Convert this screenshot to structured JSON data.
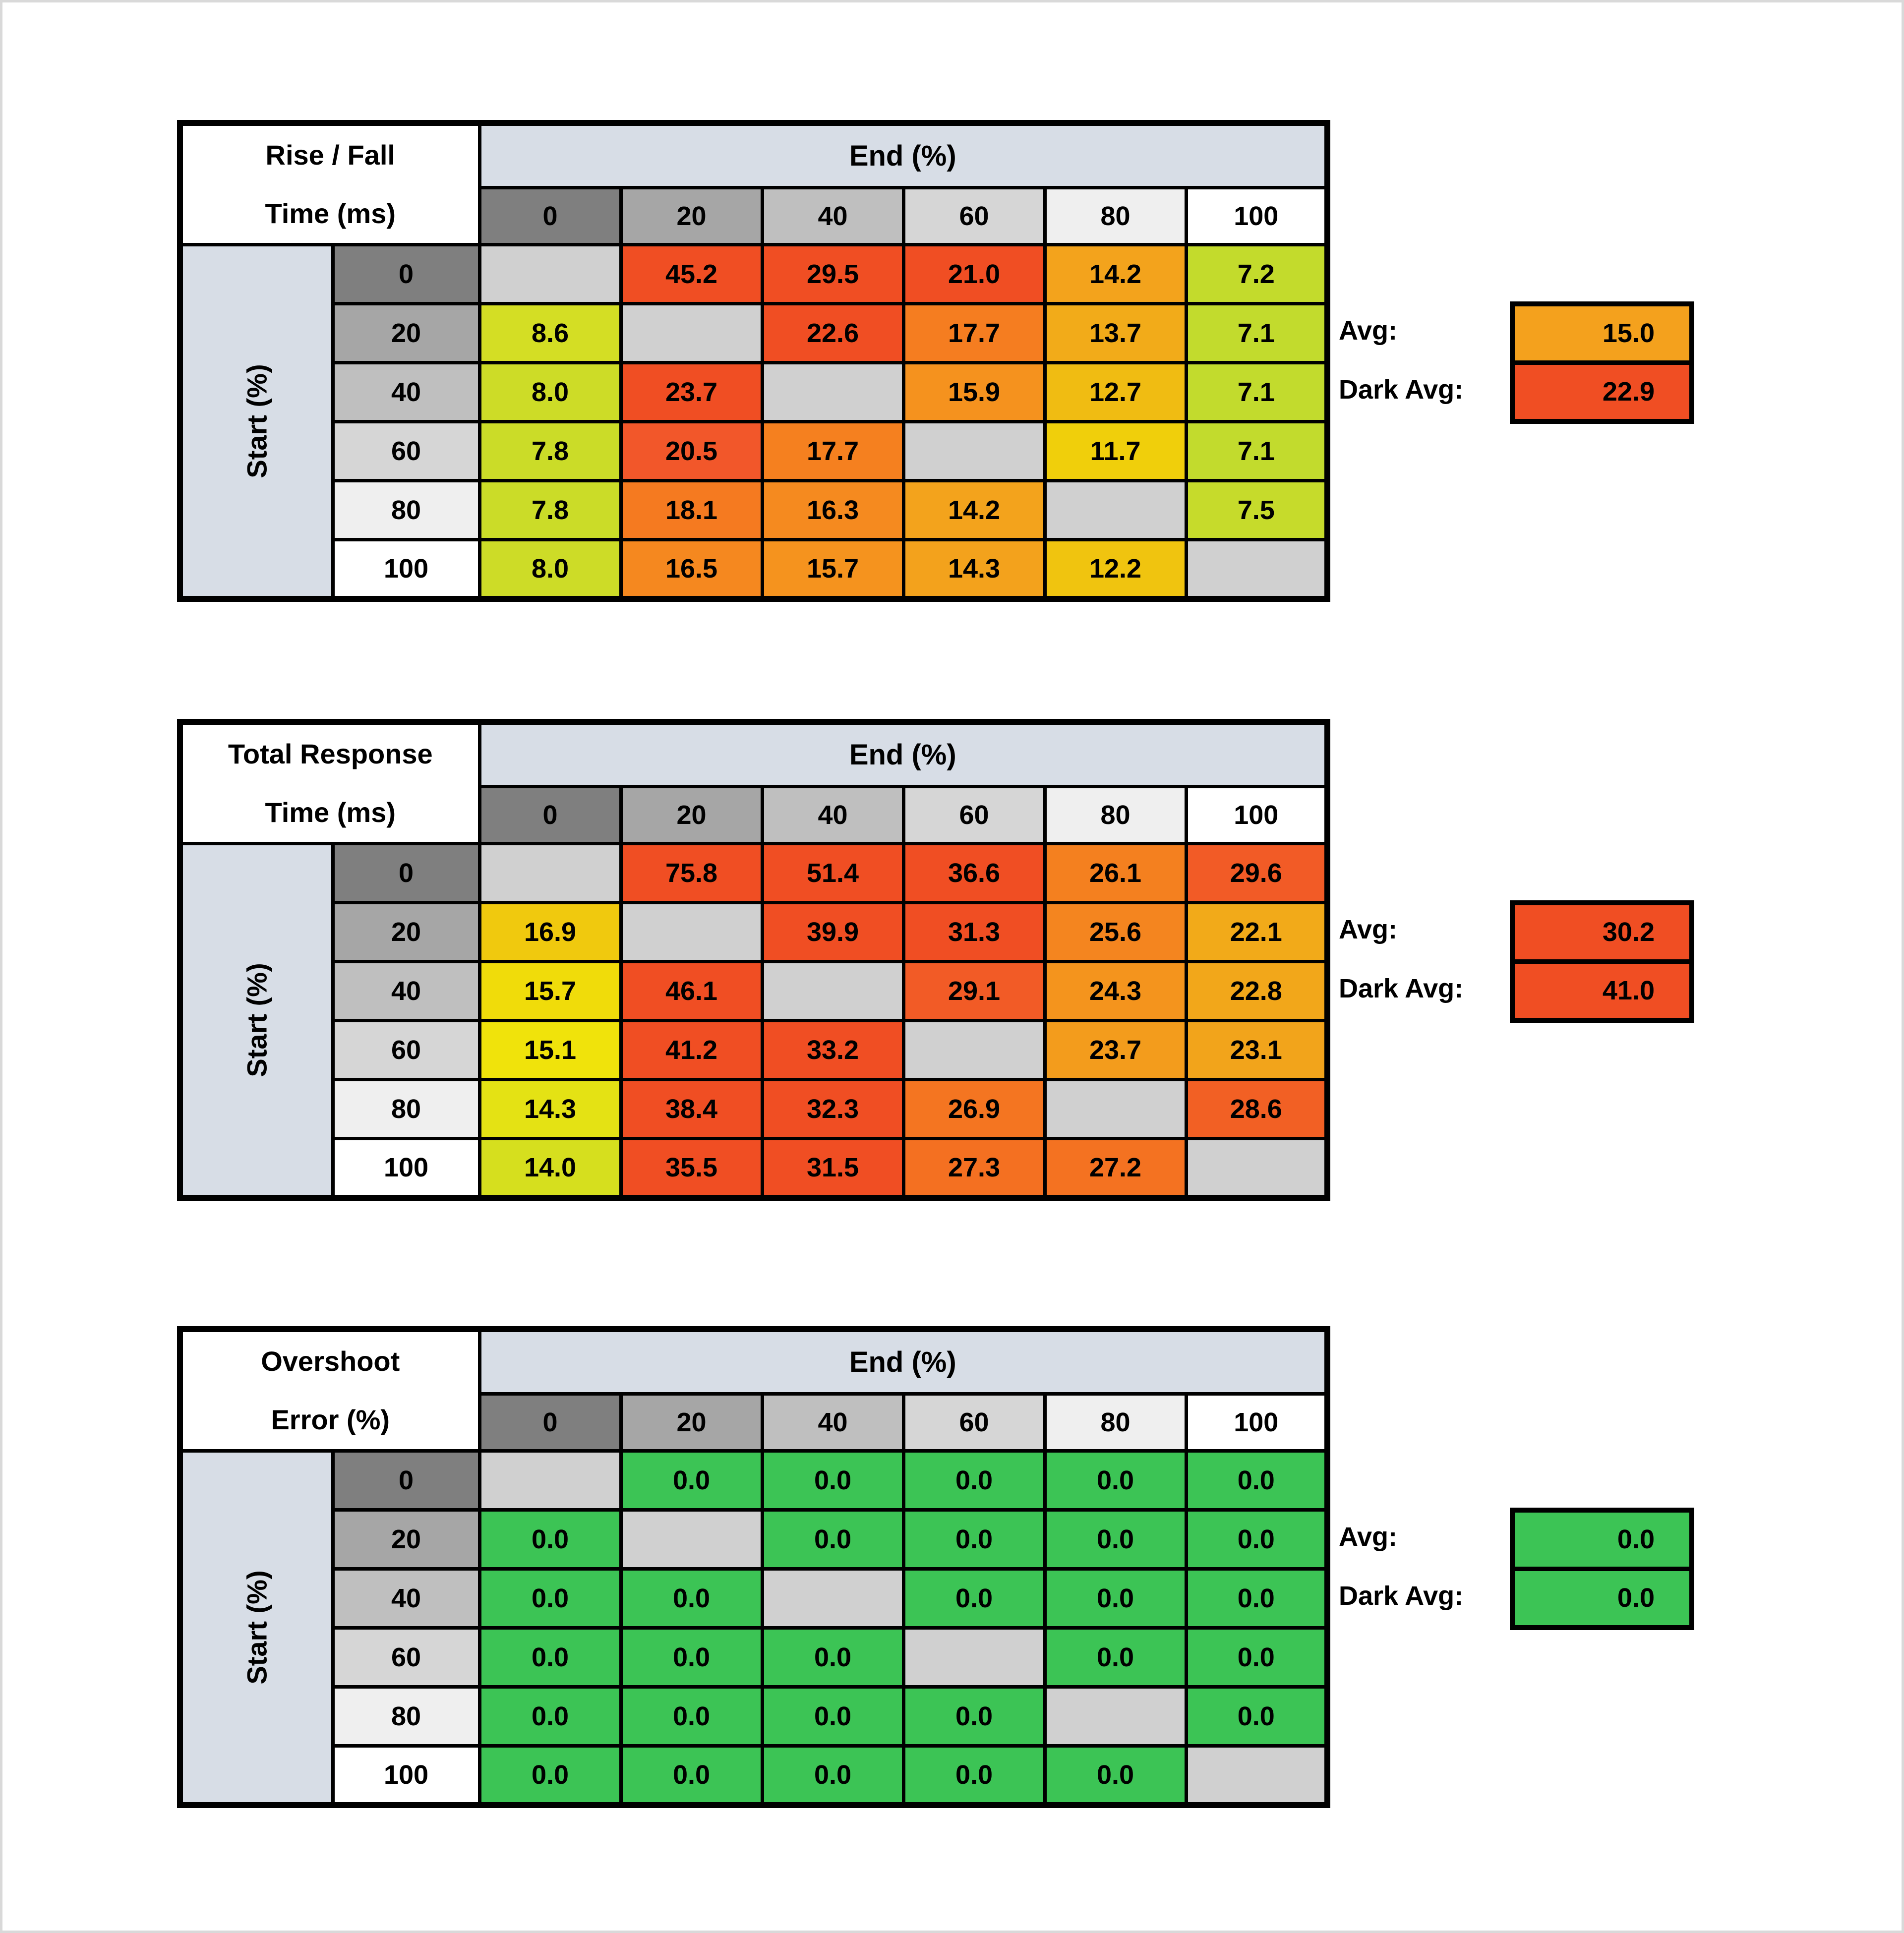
{
  "shared": {
    "x_axis_label": "End (%)",
    "y_axis_label": "Start (%)",
    "x_categories": [
      "0",
      "20",
      "40",
      "60",
      "80",
      "100"
    ],
    "y_categories": [
      "0",
      "20",
      "40",
      "60",
      "80",
      "100"
    ],
    "axis_header_shades": [
      "#7f7f7f",
      "#a6a6a6",
      "#bfbfbf",
      "#d6d6d6",
      "#efefef",
      "#ffffff"
    ],
    "colors": {
      "axis_band_blue": "#d7dde6",
      "diagonal_gray": "#d0d0d0",
      "red": "#f04e23",
      "green": "#3cc455",
      "grid_black": "#000000",
      "page_frame_gray": "#d9d9d9"
    },
    "avg_label": "Avg:",
    "dark_avg_label": "Dark Avg:"
  },
  "chart_data": [
    {
      "type": "heatmap",
      "title_line1": "Rise / Fall",
      "title_line2": "Time (ms)",
      "x_axis_label": "End (%)",
      "y_axis_label": "Start (%)",
      "x_categories": [
        "0",
        "20",
        "40",
        "60",
        "80",
        "100"
      ],
      "y_categories": [
        "0",
        "20",
        "40",
        "60",
        "80",
        "100"
      ],
      "values": [
        [
          null,
          45.2,
          29.5,
          21.0,
          14.2,
          7.2
        ],
        [
          8.6,
          null,
          22.6,
          17.7,
          13.7,
          7.1
        ],
        [
          8.0,
          23.7,
          null,
          15.9,
          12.7,
          7.1
        ],
        [
          7.8,
          20.5,
          17.7,
          null,
          11.7,
          7.1
        ],
        [
          7.8,
          18.1,
          16.3,
          14.2,
          null,
          7.5
        ],
        [
          8.0,
          16.5,
          15.7,
          14.3,
          12.2,
          null
        ]
      ],
      "cell_colors": [
        [
          null,
          "#f04e23",
          "#f04e23",
          "#f04e23",
          "#f3a31c",
          "#c3db2c"
        ],
        [
          "#d4de24",
          null,
          "#f04e23",
          "#f57d20",
          "#f2ab19",
          "#c2db2d"
        ],
        [
          "#cddc27",
          "#f04e23",
          null,
          "#f5921e",
          "#f0bc12",
          "#c2db2d"
        ],
        [
          "#cbdc28",
          "#f2572a",
          "#f5801f",
          null,
          "#f0cf0b",
          "#c2db2d"
        ],
        [
          "#cbdc28",
          "#f57a20",
          "#f58a1f",
          "#f3a31c",
          null,
          "#c6db2b"
        ],
        [
          "#cddc27",
          "#f5881f",
          "#f5931e",
          "#f3a21c",
          "#f0c40f",
          null
        ]
      ],
      "summary": {
        "avg_label": "Avg:",
        "avg_value": "15.0",
        "avg_color": "#f4a11d",
        "dark_avg_label": "Dark Avg:",
        "dark_avg_value": "22.9",
        "dark_avg_color": "#f04e23"
      }
    },
    {
      "type": "heatmap",
      "title_line1": "Total Response",
      "title_line2": "Time (ms)",
      "x_axis_label": "End (%)",
      "y_axis_label": "Start (%)",
      "x_categories": [
        "0",
        "20",
        "40",
        "60",
        "80",
        "100"
      ],
      "y_categories": [
        "0",
        "20",
        "40",
        "60",
        "80",
        "100"
      ],
      "values": [
        [
          null,
          75.8,
          51.4,
          36.6,
          26.1,
          29.6
        ],
        [
          16.9,
          null,
          39.9,
          31.3,
          25.6,
          22.1
        ],
        [
          15.7,
          46.1,
          null,
          29.1,
          24.3,
          22.8
        ],
        [
          15.1,
          41.2,
          33.2,
          null,
          23.7,
          23.1
        ],
        [
          14.3,
          38.4,
          32.3,
          26.9,
          null,
          28.6
        ],
        [
          14.0,
          35.5,
          31.5,
          27.3,
          27.2,
          null
        ]
      ],
      "cell_colors": [
        [
          null,
          "#f04e23",
          "#f04e23",
          "#f04e23",
          "#f4801f",
          "#f25b26"
        ],
        [
          "#f0c90e",
          null,
          "#f04e23",
          "#f04e23",
          "#f4851f",
          "#f2aa19"
        ],
        [
          "#f0dc0a",
          "#f04e23",
          null,
          "#f25b26",
          "#f4941d",
          "#f2a71a"
        ],
        [
          "#f0e30b",
          "#f04e23",
          "#f04e23",
          null,
          "#f39c1c",
          "#f2a41b"
        ],
        [
          "#e4e214",
          "#f04e23",
          "#f04e23",
          "#f47521",
          null,
          "#f26024"
        ],
        [
          "#d6df1e",
          "#f04e23",
          "#f04e23",
          "#f47021",
          "#f47221",
          null
        ]
      ],
      "summary": {
        "avg_label": "Avg:",
        "avg_value": "30.2",
        "avg_color": "#f04e23",
        "dark_avg_label": "Dark Avg:",
        "dark_avg_value": "41.0",
        "dark_avg_color": "#f04e23"
      }
    },
    {
      "type": "heatmap",
      "title_line1": "Overshoot",
      "title_line2": "Error (%)",
      "x_axis_label": "End (%)",
      "y_axis_label": "Start (%)",
      "x_categories": [
        "0",
        "20",
        "40",
        "60",
        "80",
        "100"
      ],
      "y_categories": [
        "0",
        "20",
        "40",
        "60",
        "80",
        "100"
      ],
      "values": [
        [
          null,
          0.0,
          0.0,
          0.0,
          0.0,
          0.0
        ],
        [
          0.0,
          null,
          0.0,
          0.0,
          0.0,
          0.0
        ],
        [
          0.0,
          0.0,
          null,
          0.0,
          0.0,
          0.0
        ],
        [
          0.0,
          0.0,
          0.0,
          null,
          0.0,
          0.0
        ],
        [
          0.0,
          0.0,
          0.0,
          0.0,
          null,
          0.0
        ],
        [
          0.0,
          0.0,
          0.0,
          0.0,
          0.0,
          null
        ]
      ],
      "cell_colors": [
        [
          null,
          "#3cc455",
          "#3cc455",
          "#3cc455",
          "#3cc455",
          "#3cc455"
        ],
        [
          "#3cc455",
          null,
          "#3cc455",
          "#3cc455",
          "#3cc455",
          "#3cc455"
        ],
        [
          "#3cc455",
          "#3cc455",
          null,
          "#3cc455",
          "#3cc455",
          "#3cc455"
        ],
        [
          "#3cc455",
          "#3cc455",
          "#3cc455",
          null,
          "#3cc455",
          "#3cc455"
        ],
        [
          "#3cc455",
          "#3cc455",
          "#3cc455",
          "#3cc455",
          null,
          "#3cc455"
        ],
        [
          "#3cc455",
          "#3cc455",
          "#3cc455",
          "#3cc455",
          "#3cc455",
          null
        ]
      ],
      "summary": {
        "avg_label": "Avg:",
        "avg_value": "0.0",
        "avg_color": "#3cc455",
        "dark_avg_label": "Dark Avg:",
        "dark_avg_value": "0.0",
        "dark_avg_color": "#3cc455"
      }
    }
  ],
  "layout_note_values_format": "one decimal place; blank gray cells mark identical start/end transitions"
}
